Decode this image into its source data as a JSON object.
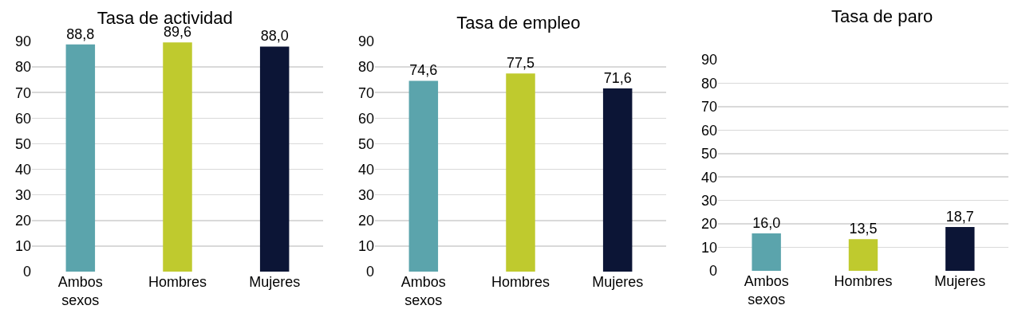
{
  "chart_data": [
    {
      "type": "bar",
      "title": "Tasa de actividad",
      "categories": [
        "Ambos sexos",
        "Hombres",
        "Mujeres"
      ],
      "values": [
        88.8,
        89.6,
        88.0
      ],
      "value_labels": [
        "88,8",
        "89,6",
        "88,0"
      ],
      "colors": [
        "#5ba4ac",
        "#bfca2e",
        "#0c1536"
      ],
      "ylim": [
        0,
        90
      ],
      "yticks": [
        0,
        10,
        20,
        30,
        40,
        50,
        60,
        70,
        80,
        90
      ],
      "grid": "y"
    },
    {
      "type": "bar",
      "title": "Tasa de empleo",
      "categories": [
        "Ambos sexos",
        "Hombres",
        "Mujeres"
      ],
      "values": [
        74.6,
        77.5,
        71.6
      ],
      "value_labels": [
        "74,6",
        "77,5",
        "71,6"
      ],
      "colors": [
        "#5ba4ac",
        "#bfca2e",
        "#0c1536"
      ],
      "ylim": [
        0,
        90
      ],
      "yticks": [
        0,
        10,
        20,
        30,
        40,
        50,
        60,
        70,
        80,
        90
      ],
      "grid": "y"
    },
    {
      "type": "bar",
      "title": "Tasa de paro",
      "categories": [
        "Ambos sexos",
        "Hombres",
        "Mujeres"
      ],
      "values": [
        16.0,
        13.5,
        18.7
      ],
      "value_labels": [
        "16,0",
        "13,5",
        "18,7"
      ],
      "colors": [
        "#5ba4ac",
        "#bfca2e",
        "#0c1536"
      ],
      "ylim": [
        0,
        90
      ],
      "yticks": [
        0,
        10,
        20,
        30,
        40,
        50,
        60,
        70,
        80,
        90
      ],
      "grid": "y"
    }
  ]
}
